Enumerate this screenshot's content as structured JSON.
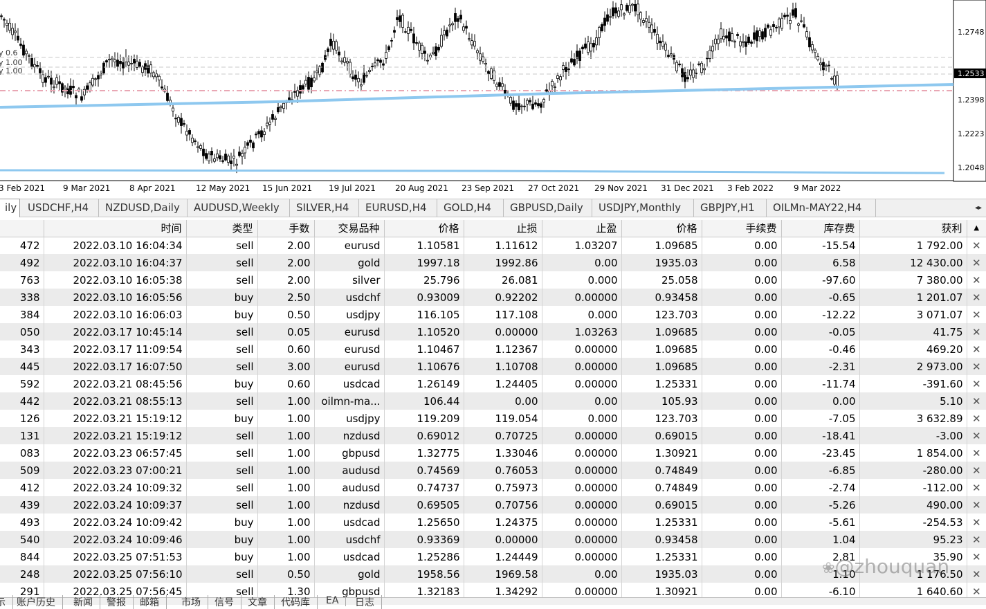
{
  "chart": {
    "price_labels": [
      "1.2748",
      "1.2398",
      "1.2223",
      "1.2048"
    ],
    "current_price": "1.2533",
    "overlay_labels": [
      "y 0.6",
      "y 1.00",
      "y 1.00"
    ],
    "date_labels": [
      "3 Feb 2021",
      "9 Mar 2021",
      "8 Apr 2021",
      "12 May 2021",
      "15 Jun 2021",
      "19 Jul 2021",
      "20 Aug 2021",
      "23 Sep 2021",
      "27 Oct 2021",
      "29 Nov 2021",
      "31 Dec 2021",
      "3 Feb 2022",
      "9 Mar 2022"
    ],
    "colors": {
      "candle": "#000000",
      "ma_line": "#8ec8ef",
      "level_line": "#e9a7b4",
      "price_tag": "#000000"
    }
  },
  "tabs": [
    {
      "label": "ily",
      "active": true
    },
    {
      "label": "USDCHF,H4"
    },
    {
      "label": "NZDUSD,Daily"
    },
    {
      "label": "AUDUSD,Weekly"
    },
    {
      "label": "SILVER,H4"
    },
    {
      "label": "EURUSD,H4"
    },
    {
      "label": "GOLD,H4"
    },
    {
      "label": "GBPUSD,Daily"
    },
    {
      "label": "USDJPY,Monthly"
    },
    {
      "label": "GBPJPY,H1"
    },
    {
      "label": "OILMn-MAY22,H4"
    }
  ],
  "tab_scroll_icon": "scroll-arrows-icon",
  "table": {
    "headers": [
      "",
      "时间",
      "类型",
      "手数",
      "交易品种",
      "价格",
      "止损",
      "止盈",
      "价格",
      "手续费",
      "库存费",
      "获利"
    ],
    "rows": [
      [
        "472",
        "2022.03.10 16:04:34",
        "sell",
        "2.00",
        "eurusd",
        "1.10581",
        "1.11612",
        "1.03207",
        "1.09685",
        "0.00",
        "-15.54",
        "1 792.00"
      ],
      [
        "492",
        "2022.03.10 16:04:37",
        "sell",
        "2.00",
        "gold",
        "1997.18",
        "1992.86",
        "0.00",
        "1935.03",
        "0.00",
        "6.58",
        "12 430.00"
      ],
      [
        "763",
        "2022.03.10 16:05:38",
        "sell",
        "2.00",
        "silver",
        "25.796",
        "26.081",
        "0.000",
        "25.058",
        "0.00",
        "-97.60",
        "7 380.00"
      ],
      [
        "338",
        "2022.03.10 16:05:56",
        "buy",
        "2.50",
        "usdchf",
        "0.93009",
        "0.92202",
        "0.00000",
        "0.93458",
        "0.00",
        "-0.65",
        "1 201.07"
      ],
      [
        "384",
        "2022.03.10 16:06:03",
        "buy",
        "0.50",
        "usdjpy",
        "116.105",
        "117.108",
        "0.000",
        "123.703",
        "0.00",
        "-12.22",
        "3 071.07"
      ],
      [
        "050",
        "2022.03.17 10:45:14",
        "sell",
        "0.05",
        "eurusd",
        "1.10520",
        "0.00000",
        "1.03263",
        "1.09685",
        "0.00",
        "-0.05",
        "41.75"
      ],
      [
        "343",
        "2022.03.17 11:09:54",
        "sell",
        "0.60",
        "eurusd",
        "1.10467",
        "1.12367",
        "0.00000",
        "1.09685",
        "0.00",
        "-0.46",
        "469.20"
      ],
      [
        "445",
        "2022.03.17 16:07:50",
        "sell",
        "3.00",
        "eurusd",
        "1.10676",
        "1.10708",
        "0.00000",
        "1.09685",
        "0.00",
        "-2.31",
        "2 973.00"
      ],
      [
        "592",
        "2022.03.21 08:45:56",
        "buy",
        "0.60",
        "usdcad",
        "1.26149",
        "1.24405",
        "0.00000",
        "1.25331",
        "0.00",
        "-11.74",
        "-391.60"
      ],
      [
        "442",
        "2022.03.21 08:55:13",
        "sell",
        "1.00",
        "oilmn-ma...",
        "106.44",
        "0.00",
        "0.00",
        "105.93",
        "0.00",
        "0.00",
        "5.10"
      ],
      [
        "126",
        "2022.03.21 15:19:12",
        "buy",
        "1.00",
        "usdjpy",
        "119.209",
        "119.054",
        "0.000",
        "123.703",
        "0.00",
        "-7.05",
        "3 632.89"
      ],
      [
        "131",
        "2022.03.21 15:19:12",
        "sell",
        "1.00",
        "nzdusd",
        "0.69012",
        "0.70725",
        "0.00000",
        "0.69015",
        "0.00",
        "-18.41",
        "-3.00"
      ],
      [
        "083",
        "2022.03.23 06:57:45",
        "sell",
        "1.00",
        "gbpusd",
        "1.32775",
        "1.33046",
        "0.00000",
        "1.30921",
        "0.00",
        "-23.45",
        "1 854.00"
      ],
      [
        "509",
        "2022.03.23 07:00:21",
        "sell",
        "1.00",
        "audusd",
        "0.74569",
        "0.76053",
        "0.00000",
        "0.74849",
        "0.00",
        "-6.85",
        "-280.00"
      ],
      [
        "412",
        "2022.03.24 10:09:32",
        "sell",
        "1.00",
        "audusd",
        "0.74737",
        "0.75973",
        "0.00000",
        "0.74849",
        "0.00",
        "-2.74",
        "-112.00"
      ],
      [
        "439",
        "2022.03.24 10:09:37",
        "sell",
        "1.00",
        "nzdusd",
        "0.69505",
        "0.70756",
        "0.00000",
        "0.69015",
        "0.00",
        "-5.26",
        "490.00"
      ],
      [
        "493",
        "2022.03.24 10:09:42",
        "buy",
        "1.00",
        "usdcad",
        "1.25650",
        "1.24375",
        "0.00000",
        "1.25331",
        "0.00",
        "-5.61",
        "-254.53"
      ],
      [
        "540",
        "2022.03.24 10:09:46",
        "buy",
        "1.00",
        "usdchf",
        "0.93369",
        "0.00000",
        "0.00000",
        "0.93458",
        "0.00",
        "1.04",
        "95.23"
      ],
      [
        "844",
        "2022.03.25 07:51:53",
        "buy",
        "1.00",
        "usdcad",
        "1.25286",
        "1.24449",
        "0.00000",
        "1.25331",
        "0.00",
        "2.81",
        "35.90"
      ],
      [
        "248",
        "2022.03.25 07:56:10",
        "sell",
        "0.50",
        "gold",
        "1958.56",
        "1969.58",
        "0.00",
        "1935.03",
        "0.00",
        "1.10",
        "1 176.50"
      ],
      [
        "291",
        "2022.03.25 07:56:45",
        "sell",
        "1.30",
        "gbpusd",
        "1.32183",
        "1.34292",
        "0.00000",
        "1.30921",
        "0.00",
        "-6.10",
        "1 640.60"
      ]
    ]
  },
  "bottom_tabs": [
    "示",
    "账户历史",
    "新闻",
    "警报",
    "邮箱",
    "市场",
    "信号",
    "文章",
    "代码库",
    "EA",
    "日志"
  ],
  "watermark": "@zhouquan"
}
